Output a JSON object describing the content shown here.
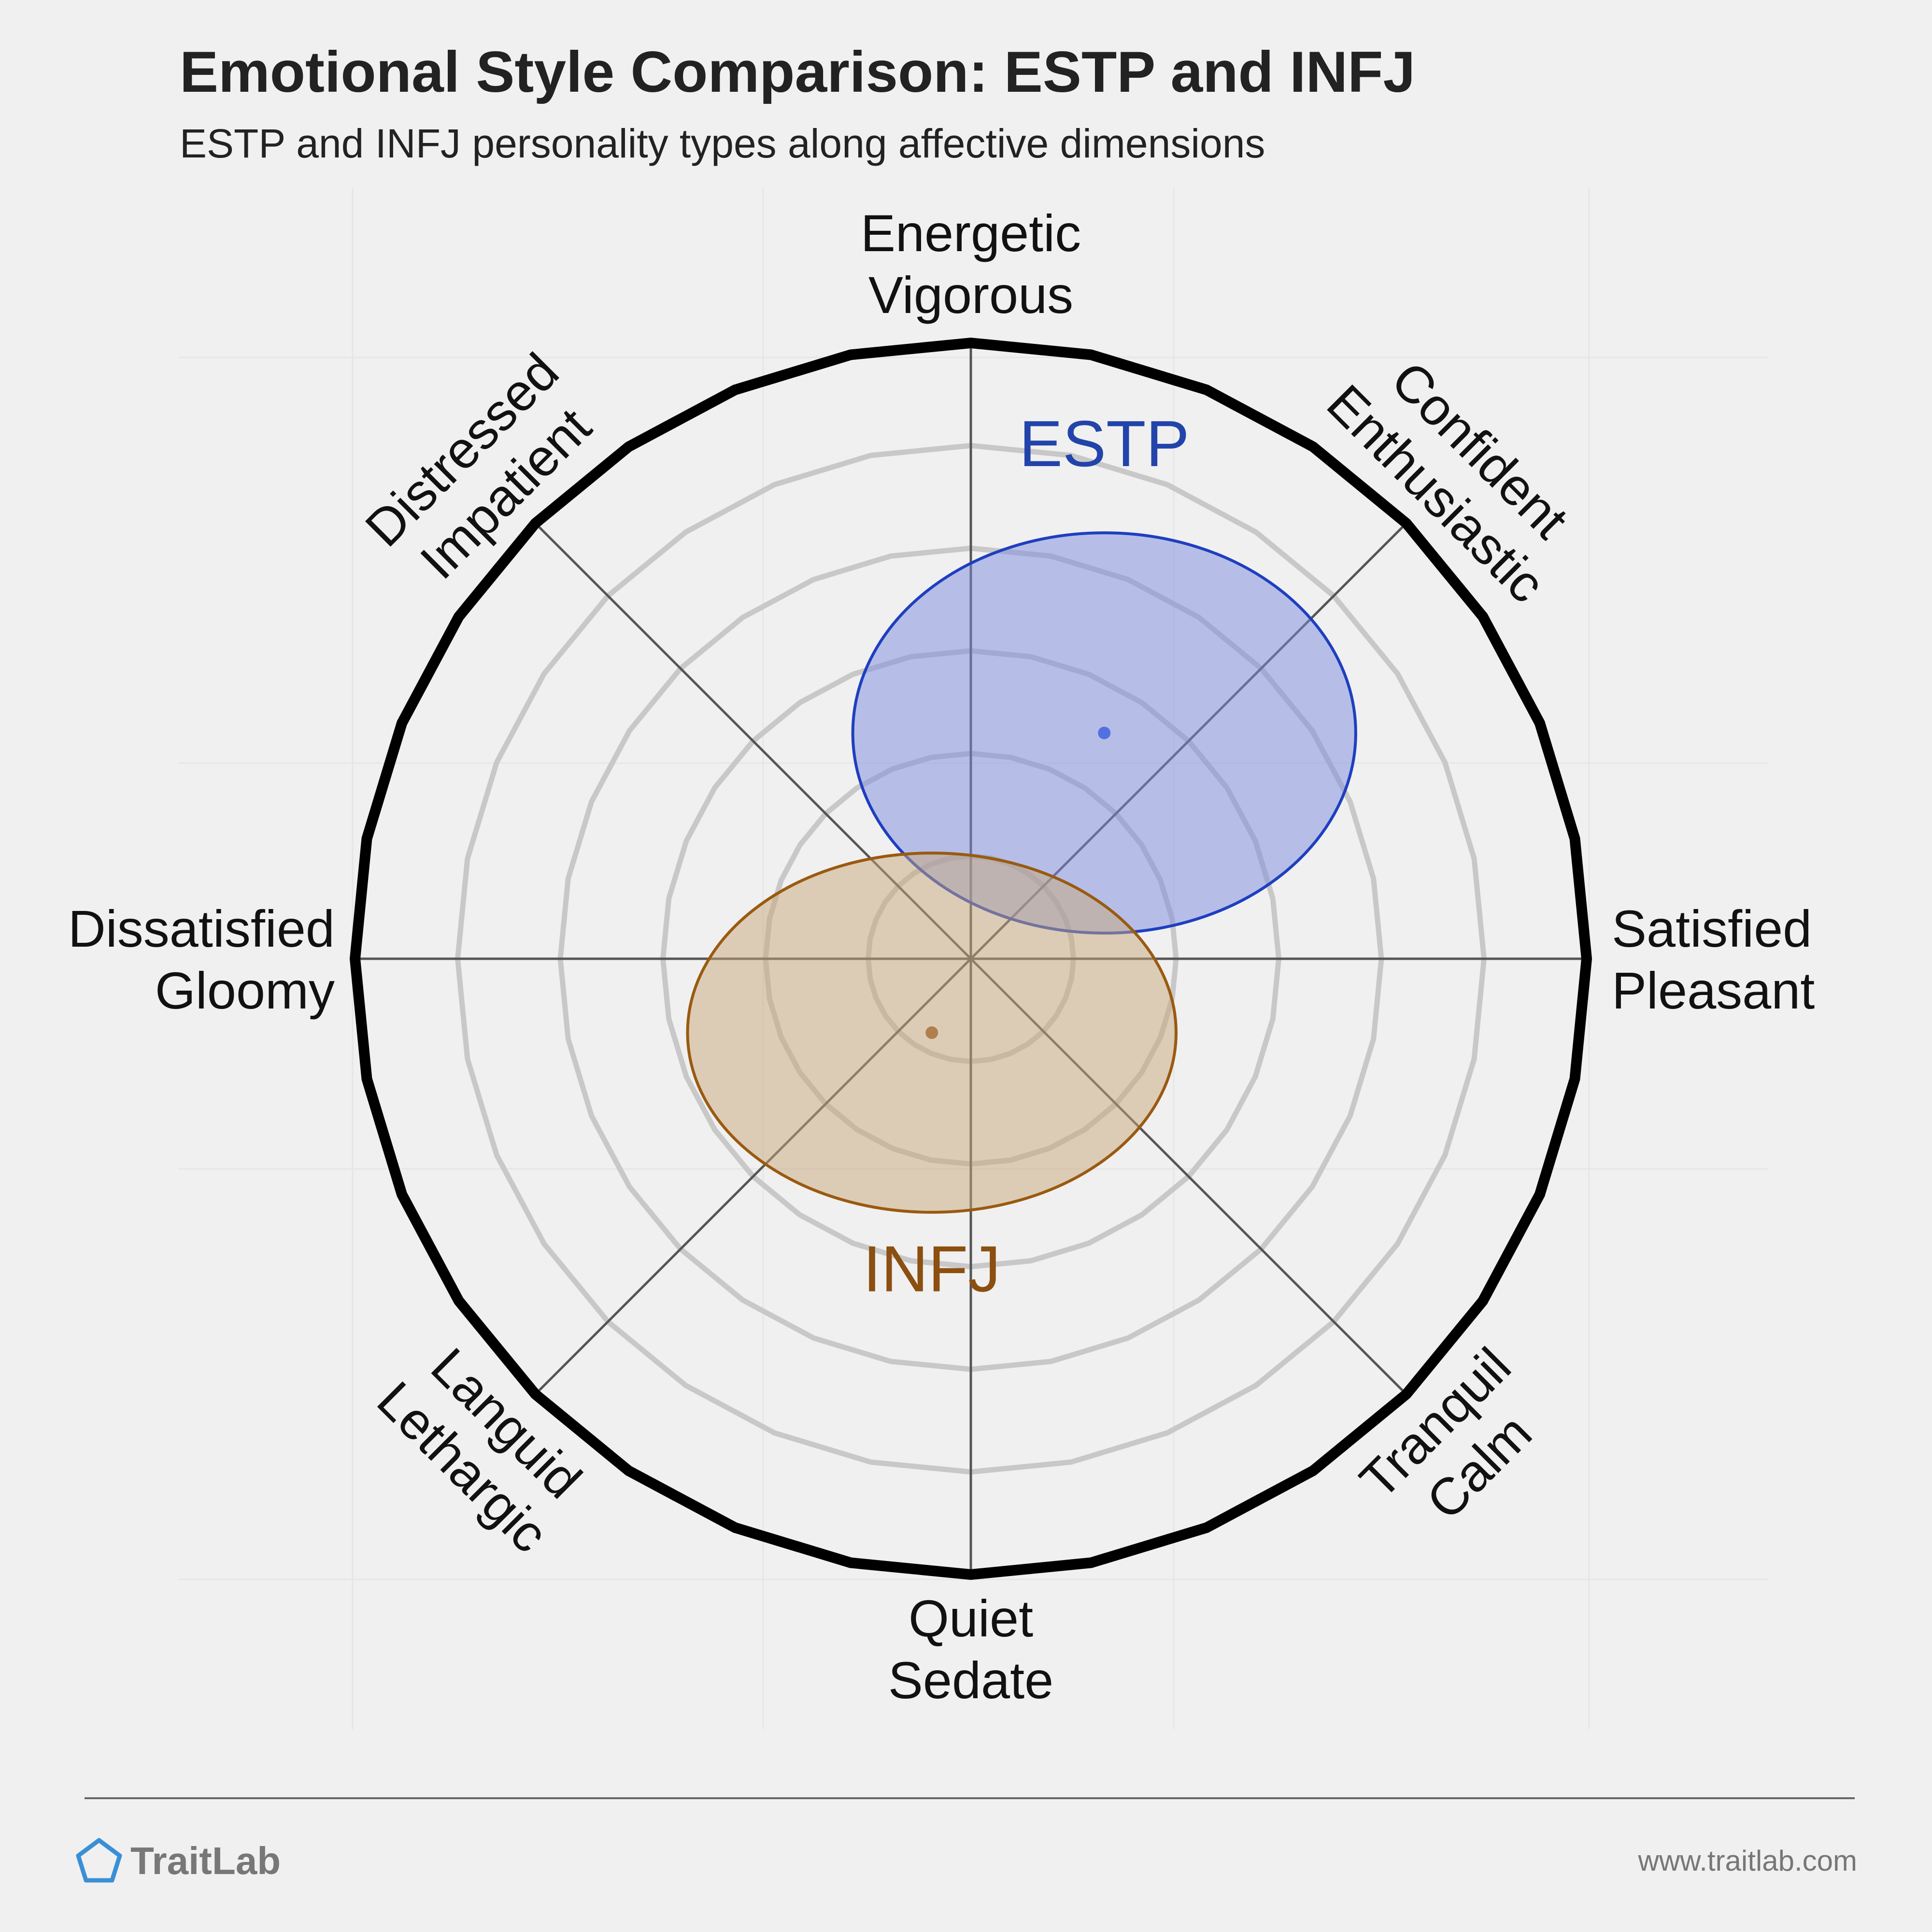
{
  "title": "Emotional Style Comparison: ESTP and INFJ",
  "subtitle": "ESTP and INFJ personality types along affective dimensions",
  "chart_data": {
    "type": "scatter",
    "subtype": "circumplex",
    "title": "Emotional Style Comparison: ESTP and INFJ",
    "subtitle": "ESTP and INFJ personality types along affective dimensions",
    "axes": [
      {
        "angle_deg": 90,
        "lines": [
          "Energetic",
          "Vigorous"
        ]
      },
      {
        "angle_deg": 45,
        "lines": [
          "Confident",
          "Enthusiastic"
        ]
      },
      {
        "angle_deg": 0,
        "lines": [
          "Satisfied",
          "Pleasant"
        ]
      },
      {
        "angle_deg": -45,
        "lines": [
          "Tranquil",
          "Calm"
        ]
      },
      {
        "angle_deg": -90,
        "lines": [
          "Quiet",
          "Sedate"
        ]
      },
      {
        "angle_deg": -135,
        "lines": [
          "Languid",
          "Lethargic"
        ]
      },
      {
        "angle_deg": 180,
        "lines": [
          "Dissatisfied",
          "Gloomy"
        ]
      },
      {
        "angle_deg": 135,
        "lines": [
          "Distressed",
          "Impatient"
        ]
      }
    ],
    "xlim": [
      -6,
      6
    ],
    "ylim": [
      -6,
      6
    ],
    "rings": [
      1,
      2,
      3,
      4,
      5
    ],
    "grid": true,
    "series": [
      {
        "name": "ESTP",
        "x": 1.3,
        "y": 2.2,
        "sx": 2.45,
        "sy": 1.95,
        "stroke": "#1f3fbf",
        "fill": "#7b8ce0",
        "dot": "#3355dd",
        "label_color": "#2244aa",
        "label_pos": [
          1.3,
          4.8
        ]
      },
      {
        "name": "INFJ",
        "x": -0.38,
        "y": -0.72,
        "sx": 2.38,
        "sy": 1.75,
        "stroke": "#9a5a10",
        "fill": "#c8a77c",
        "dot": "#a0662a",
        "label_color": "#8b4f10",
        "label_pos": [
          -0.38,
          -3.24
        ]
      }
    ]
  },
  "footer": {
    "brand": "TraitLab",
    "url": "www.traitlab.com"
  },
  "colors": {
    "background": "#f0f0f0",
    "ring_outer": "#000000",
    "ring_inner": "#c8c8c8",
    "axis_line": "#555555"
  }
}
